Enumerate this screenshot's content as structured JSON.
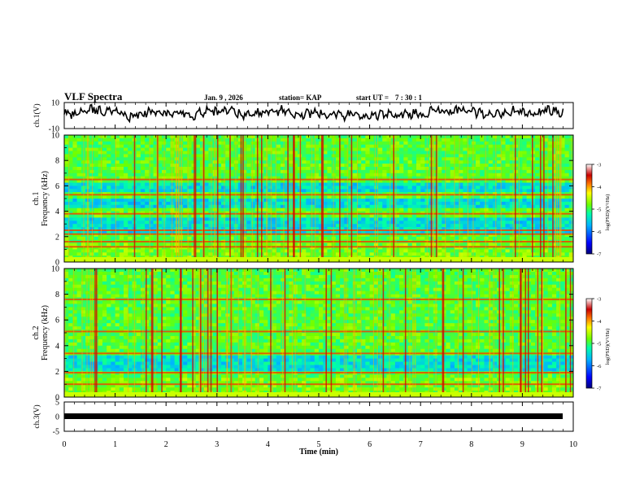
{
  "header": {
    "title": "VLF Spectra",
    "date": "Jan. 9 , 2026",
    "station": "station= KAP",
    "start_label": "start  UT =",
    "start_time": "7 : 30 : 1"
  },
  "chart_data": [
    {
      "type": "line",
      "id": "ch1-waveform",
      "ylabel": "ch.1(V)",
      "ylim": [
        -10,
        10
      ],
      "yticks": [
        "10",
        "-10"
      ],
      "x": [
        0,
        0.25,
        0.5,
        0.75,
        1,
        1.25,
        1.5,
        1.75,
        2,
        2.25,
        2.5,
        2.75,
        3,
        3.25,
        3.5,
        3.75,
        4,
        4.25,
        4.5,
        4.75,
        5,
        5.25,
        5.5,
        5.75,
        6,
        6.25,
        6.5,
        6.75,
        7,
        7.25,
        7.5,
        7.75,
        8,
        8.25,
        8.5,
        8.75,
        9,
        9.25,
        9.5,
        9.75
      ],
      "values": [
        1,
        2,
        5,
        3,
        4,
        -1,
        2,
        3,
        1,
        2,
        0,
        3,
        2,
        4,
        1,
        2,
        3,
        4,
        0,
        2,
        3,
        1,
        0,
        2,
        -1,
        1,
        0,
        2,
        1,
        3,
        2,
        4,
        3,
        1,
        2,
        4,
        3,
        1,
        4,
        3
      ],
      "xlim": [
        0,
        10
      ]
    },
    {
      "type": "heatmap",
      "id": "ch1-spectrogram",
      "channel": "ch.1",
      "ylabel": "Frequency (kHz)",
      "ylim": [
        0,
        10
      ],
      "yticks": [
        "0",
        "2",
        "4",
        "6",
        "8",
        "10"
      ],
      "xlim": [
        0,
        10
      ],
      "colorbar": {
        "label": "log(PSD)(V²/Hz)",
        "ticks": [
          "-3",
          "-4",
          "-5",
          "-6",
          "-7"
        ],
        "range": [
          -7,
          -3
        ]
      },
      "freq_bands_khz": [
        0.3,
        1.2,
        1.6,
        2.2,
        2.5,
        3.8,
        5.3,
        6.5
      ],
      "quiet_bands_khz": [
        [
          2.3,
          3.6
        ],
        [
          4.2,
          5.0
        ],
        [
          5.6,
          6.3
        ]
      ]
    },
    {
      "type": "heatmap",
      "id": "ch2-spectrogram",
      "channel": "ch.2",
      "ylabel": "Frequency (kHz)",
      "ylim": [
        0,
        10
      ],
      "yticks": [
        "0",
        "2",
        "4",
        "6",
        "8",
        "10"
      ],
      "xlim": [
        0,
        10
      ],
      "colorbar": {
        "label": "log(PSD)(V²/Hz)",
        "ticks": [
          "-3",
          "-4",
          "-5",
          "-6",
          "-7"
        ],
        "range": [
          -7,
          -3
        ]
      },
      "freq_bands_khz": [
        0.3,
        1.0,
        1.9,
        3.4,
        5.1,
        7.6
      ],
      "quiet_bands_khz": [
        [
          2.0,
          3.2
        ]
      ]
    },
    {
      "type": "line",
      "id": "ch3-waveform",
      "ylabel": "ch.3(V)",
      "ylim": [
        -5,
        5
      ],
      "yticks": [
        "5",
        "0",
        "-5"
      ],
      "x": [
        0,
        9.8
      ],
      "values": [
        0,
        0
      ],
      "xlim": [
        0,
        10
      ],
      "xlabel": "Time (min)",
      "xticks": [
        "0",
        "1",
        "2",
        "3",
        "4",
        "5",
        "6",
        "7",
        "8",
        "9",
        "10"
      ]
    }
  ],
  "colors": {
    "background": "#ffffff",
    "trace": "#000000",
    "colormap": [
      "#00007a",
      "#0000ff",
      "#00b4ff",
      "#00ffaa",
      "#6cff00",
      "#ffff00",
      "#ff7800",
      "#c80000",
      "#ffffff"
    ]
  }
}
